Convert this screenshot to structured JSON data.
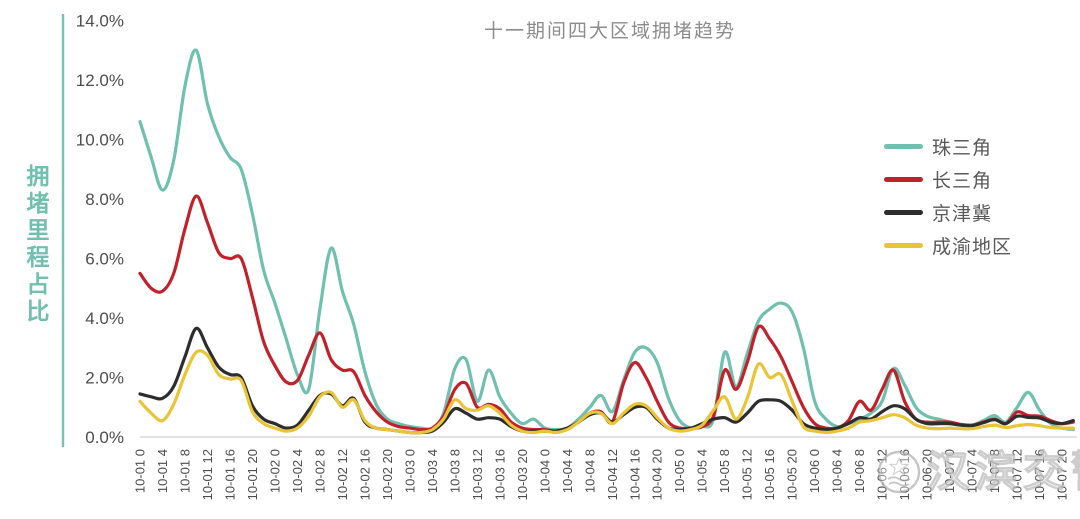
{
  "title": "十一期间四大区域拥堵趋势",
  "y_axis_title": "拥堵里程占比",
  "watermark": {
    "text": "汉滨交警",
    "badge": "police-badge"
  },
  "colors": {
    "axis_line": "#74C3B4",
    "baseline": "#D9D9D9",
    "tick_text": "#4D4D4D",
    "title_text": "#8C8C8C",
    "legend_text": "#595959",
    "y_title_text": "#6FC0B1"
  },
  "chart_data": {
    "type": "line",
    "title": "十一期间四大区域拥堵趋势",
    "xlabel": "",
    "ylabel": "拥堵里程占比",
    "ylim": [
      0,
      14
    ],
    "grid": false,
    "legend_position": "right",
    "x_step_hours": 2,
    "y_ticks": [
      "0.0%",
      "2.0%",
      "4.0%",
      "6.0%",
      "8.0%",
      "10.0%",
      "12.0%",
      "14.0%"
    ],
    "x_labels": [
      "10-01 0",
      "10-01 4",
      "10-01 8",
      "10-01 12",
      "10-01 16",
      "10-01 20",
      "10-02 0",
      "10-02 4",
      "10-02 8",
      "10-02 12",
      "10-02 16",
      "10-02 20",
      "10-03 0",
      "10-03 4",
      "10-03 8",
      "10-03 12",
      "10-03 16",
      "10-03 20",
      "10-04 0",
      "10-04 4",
      "10-04 8",
      "10-04 12",
      "10-04 16",
      "10-04 20",
      "10-05 0",
      "10-05 4",
      "10-05 8",
      "10-05 12",
      "10-05 16",
      "10-05 20",
      "10-06 0",
      "10-06 4",
      "10-06 8",
      "10-06 12",
      "10-06 16",
      "10-06 20",
      "10-07 0",
      "10-07 4",
      "10-07 8",
      "10-07 12",
      "10-07 16",
      "10-07 20"
    ],
    "series": [
      {
        "name": "珠三角",
        "color": "#6FC0AF",
        "values": [
          10.6,
          9.4,
          8.3,
          9.3,
          11.8,
          13.0,
          11.2,
          10.1,
          9.4,
          9.0,
          7.5,
          5.6,
          4.5,
          3.3,
          2.1,
          1.6,
          4.3,
          6.35,
          4.9,
          3.8,
          2.2,
          1.1,
          0.6,
          0.45,
          0.35,
          0.3,
          0.3,
          0.8,
          2.3,
          2.6,
          1.2,
          2.25,
          1.35,
          0.8,
          0.45,
          0.6,
          0.3,
          0.25,
          0.3,
          0.6,
          1.0,
          1.4,
          0.85,
          1.9,
          2.85,
          3.0,
          2.5,
          1.3,
          0.55,
          0.3,
          0.35,
          0.6,
          2.85,
          1.7,
          2.8,
          3.9,
          4.3,
          4.5,
          4.2,
          3.0,
          1.2,
          0.6,
          0.35,
          0.45,
          0.6,
          0.8,
          1.2,
          2.3,
          1.75,
          1.0,
          0.7,
          0.6,
          0.5,
          0.4,
          0.4,
          0.55,
          0.72,
          0.5,
          1.0,
          1.5,
          0.9,
          0.45,
          0.3,
          0.25
        ]
      },
      {
        "name": "长三角",
        "color": "#C2212B",
        "values": [
          5.5,
          5.0,
          4.9,
          5.5,
          7.0,
          8.1,
          7.2,
          6.2,
          6.0,
          6.0,
          4.7,
          3.2,
          2.4,
          1.85,
          1.9,
          2.75,
          3.5,
          2.6,
          2.25,
          2.2,
          1.4,
          0.85,
          0.5,
          0.35,
          0.3,
          0.25,
          0.3,
          0.7,
          1.6,
          1.8,
          1.0,
          1.1,
          0.95,
          0.5,
          0.3,
          0.25,
          0.25,
          0.2,
          0.3,
          0.5,
          0.8,
          0.85,
          0.5,
          1.8,
          2.5,
          2.0,
          1.2,
          0.5,
          0.3,
          0.3,
          0.35,
          0.7,
          2.25,
          1.6,
          2.5,
          3.7,
          3.3,
          2.7,
          1.85,
          1.0,
          0.45,
          0.3,
          0.3,
          0.55,
          1.2,
          0.9,
          1.6,
          2.25,
          1.2,
          0.6,
          0.5,
          0.5,
          0.5,
          0.42,
          0.4,
          0.5,
          0.6,
          0.45,
          0.84,
          0.72,
          0.7,
          0.55,
          0.45,
          0.5
        ]
      },
      {
        "name": "京津冀",
        "color": "#2D2D2D",
        "values": [
          1.45,
          1.35,
          1.3,
          1.7,
          2.7,
          3.65,
          3.0,
          2.35,
          2.1,
          2.0,
          1.05,
          0.6,
          0.45,
          0.3,
          0.4,
          0.9,
          1.4,
          1.45,
          1.05,
          1.3,
          0.5,
          0.3,
          0.25,
          0.2,
          0.15,
          0.15,
          0.2,
          0.5,
          0.95,
          0.8,
          0.6,
          0.65,
          0.6,
          0.35,
          0.2,
          0.2,
          0.2,
          0.2,
          0.3,
          0.5,
          0.75,
          0.8,
          0.5,
          0.75,
          1.0,
          1.0,
          0.6,
          0.3,
          0.25,
          0.3,
          0.45,
          0.6,
          0.65,
          0.5,
          0.8,
          1.2,
          1.25,
          1.2,
          0.9,
          0.45,
          0.3,
          0.25,
          0.3,
          0.45,
          0.65,
          0.6,
          0.85,
          1.05,
          0.95,
          0.6,
          0.45,
          0.45,
          0.45,
          0.4,
          0.38,
          0.48,
          0.58,
          0.45,
          0.7,
          0.66,
          0.64,
          0.5,
          0.45,
          0.55
        ]
      },
      {
        "name": "成渝地区",
        "color": "#EAC437",
        "values": [
          1.2,
          0.8,
          0.55,
          1.1,
          2.1,
          2.85,
          2.75,
          2.1,
          1.95,
          1.9,
          0.85,
          0.45,
          0.3,
          0.2,
          0.3,
          0.7,
          1.35,
          1.5,
          1.0,
          1.25,
          0.55,
          0.3,
          0.25,
          0.2,
          0.15,
          0.15,
          0.25,
          0.6,
          1.25,
          0.95,
          0.9,
          1.05,
          0.8,
          0.4,
          0.2,
          0.15,
          0.2,
          0.15,
          0.25,
          0.5,
          0.8,
          0.8,
          0.45,
          0.8,
          1.1,
          1.05,
          0.65,
          0.3,
          0.2,
          0.25,
          0.4,
          0.9,
          1.35,
          0.6,
          1.3,
          2.45,
          2.0,
          2.1,
          1.2,
          0.35,
          0.2,
          0.15,
          0.2,
          0.3,
          0.5,
          0.55,
          0.65,
          0.75,
          0.65,
          0.4,
          0.3,
          0.28,
          0.3,
          0.28,
          0.28,
          0.35,
          0.4,
          0.32,
          0.38,
          0.42,
          0.38,
          0.32,
          0.3,
          0.3
        ]
      }
    ]
  }
}
